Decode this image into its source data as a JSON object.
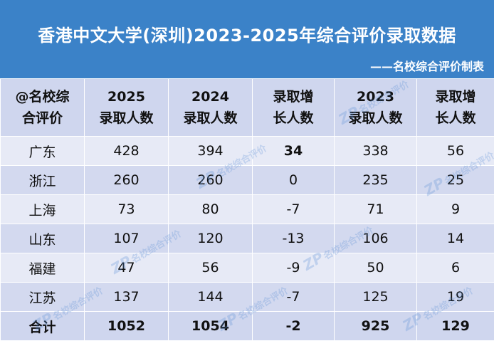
{
  "title": "香港中文大学(深圳)2023-2025年综合评价录取数据",
  "subtitle": "——名校综合评价制表",
  "headers": [
    [
      "@名校综",
      "合评价"
    ],
    [
      "2025",
      "录取人数"
    ],
    [
      "2024",
      "录取人数"
    ],
    [
      "录取增",
      "长人数"
    ],
    [
      "2023",
      "录取人数"
    ],
    [
      "录取增",
      "长人数"
    ]
  ],
  "rows": [
    [
      "广东",
      "428",
      "394",
      "34",
      "338",
      "56"
    ],
    [
      "浙江",
      "260",
      "260",
      "0",
      "235",
      "25"
    ],
    [
      "上海",
      "73",
      "80",
      "-7",
      "71",
      "9"
    ],
    [
      "山东",
      "107",
      "120",
      "-13",
      "106",
      "14"
    ],
    [
      "福建",
      "47",
      "56",
      "-9",
      "50",
      "6"
    ],
    [
      "江苏",
      "137",
      "144",
      "-7",
      "125",
      "19"
    ]
  ],
  "total": [
    "合计",
    "1052",
    "1054",
    "-2",
    "925",
    "129"
  ],
  "watermark": {
    "letters": "ZP",
    "text": "名校综合评价"
  },
  "colors": {
    "header_bg": "#3b82c8",
    "row_light": "#e7eaf6",
    "row_dark": "#d3d9ef",
    "head_bg": "#cfd6ee"
  }
}
